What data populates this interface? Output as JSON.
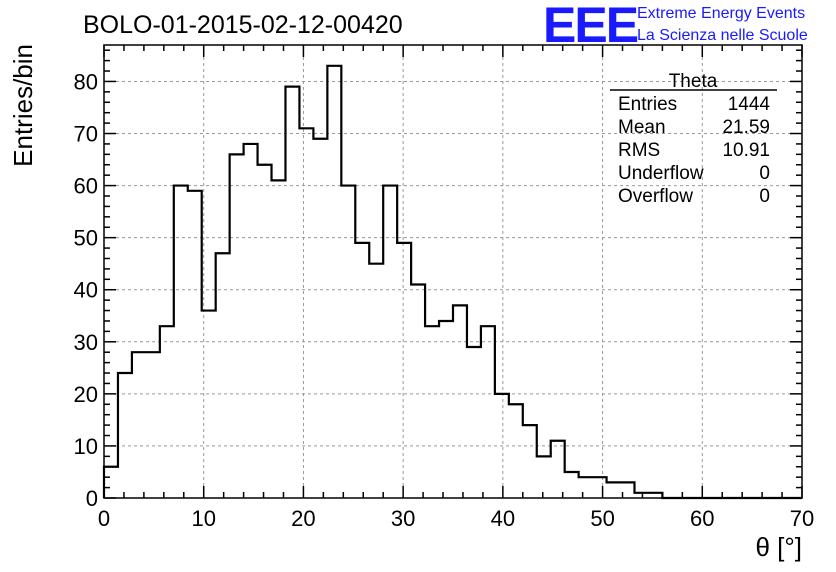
{
  "logo": {
    "mark": "EEE",
    "line1": "Extreme Energy Events",
    "line2": "La Scienza nelle Scuole",
    "color": "#1a1aff"
  },
  "stats": {
    "title": "Theta",
    "rows": [
      {
        "label": "Entries",
        "value": "1444"
      },
      {
        "label": "Mean",
        "value": "21.59"
      },
      {
        "label": "RMS",
        "value": "10.91"
      },
      {
        "label": "Underflow",
        "value": "0"
      },
      {
        "label": "Overflow",
        "value": "0"
      }
    ]
  },
  "chart_data": {
    "type": "histogram",
    "title": "BOLO-01-2015-02-12-00420",
    "xlabel": "θ [°]",
    "ylabel": "Entries/bin",
    "xlim": [
      0,
      70
    ],
    "ylim": [
      0,
      87
    ],
    "bin_width": 1.4,
    "x_ticks": [
      0,
      10,
      20,
      30,
      40,
      50,
      60,
      70
    ],
    "y_ticks": [
      0,
      10,
      20,
      30,
      40,
      50,
      60,
      70,
      80
    ],
    "grid": true,
    "bin_edges_start": 0,
    "values": [
      6,
      24,
      28,
      28,
      33,
      60,
      59,
      36,
      47,
      66,
      68,
      64,
      61,
      79,
      71,
      69,
      83,
      60,
      49,
      45,
      60,
      49,
      41,
      33,
      34,
      37,
      29,
      33,
      20,
      18,
      14,
      8,
      11,
      5,
      4,
      4,
      3,
      3,
      1,
      1,
      0,
      0,
      0,
      0,
      0,
      0,
      0,
      0,
      0,
      0
    ]
  }
}
